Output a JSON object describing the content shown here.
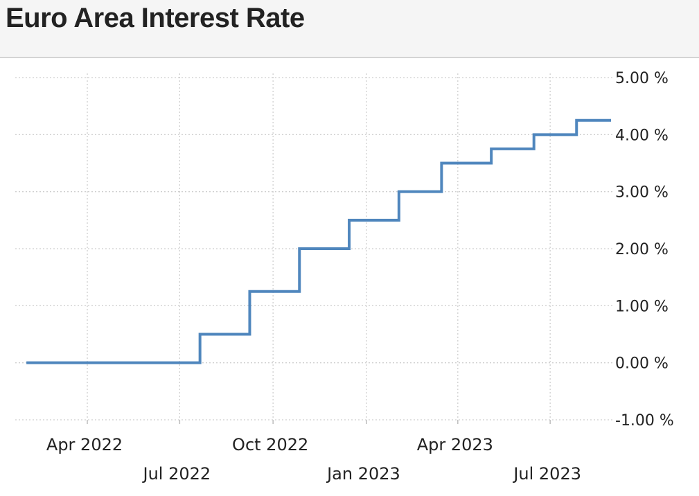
{
  "header": {
    "title": "Euro Area Interest Rate"
  },
  "chart_data": {
    "type": "line",
    "title": "Euro Area Interest Rate",
    "xlabel": "",
    "ylabel": "",
    "ylim": [
      -1,
      5
    ],
    "y_ticks": [
      {
        "value": 5,
        "label": "5.00 %"
      },
      {
        "value": 4,
        "label": "4.00 %"
      },
      {
        "value": 3,
        "label": "3.00 %"
      },
      {
        "value": 2,
        "label": "2.00 %"
      },
      {
        "value": 1,
        "label": "1.00 %"
      },
      {
        "value": 0,
        "label": "0.00 %"
      },
      {
        "value": -1,
        "label": "-1.00 %"
      }
    ],
    "xlim": [
      "2022-01-20",
      "2023-09-01"
    ],
    "x_ticks": [
      {
        "date": "2022-04-01",
        "label": "Apr 2022",
        "row": 1
      },
      {
        "date": "2022-07-01",
        "label": "Jul 2022",
        "row": 2
      },
      {
        "date": "2022-10-01",
        "label": "Oct 2022",
        "row": 1
      },
      {
        "date": "2023-01-01",
        "label": "Jan 2023",
        "row": 2
      },
      {
        "date": "2023-04-01",
        "label": "Apr 2023",
        "row": 1
      },
      {
        "date": "2023-07-01",
        "label": "Jul 2023",
        "row": 2
      }
    ],
    "grid": true,
    "step": true,
    "line_color": "#4f86bd",
    "series": [
      {
        "name": "",
        "points": [
          {
            "date": "2022-01-31",
            "value": 0.0
          },
          {
            "date": "2022-07-21",
            "value": 0.5
          },
          {
            "date": "2022-09-08",
            "value": 1.25
          },
          {
            "date": "2022-10-27",
            "value": 2.0
          },
          {
            "date": "2022-12-15",
            "value": 2.5
          },
          {
            "date": "2023-02-02",
            "value": 3.0
          },
          {
            "date": "2023-03-16",
            "value": 3.5
          },
          {
            "date": "2023-05-04",
            "value": 3.75
          },
          {
            "date": "2023-06-15",
            "value": 4.0
          },
          {
            "date": "2023-07-27",
            "value": 4.25
          }
        ]
      }
    ]
  }
}
